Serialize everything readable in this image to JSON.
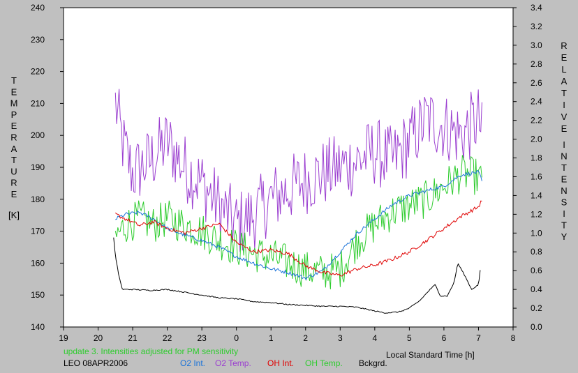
{
  "chart_data": {
    "type": "line",
    "xlabel": "Local Standard Time [h]",
    "xticks": [
      "19",
      "20",
      "21",
      "22",
      "23",
      "0",
      "1",
      "2",
      "3",
      "4",
      "5",
      "6",
      "7",
      "8"
    ],
    "xlim": [
      19,
      32
    ],
    "y_left": {
      "label_letters": [
        "T",
        "E",
        "M",
        "P",
        "E",
        "R",
        "A",
        "T",
        "U",
        "R",
        "E"
      ],
      "unit": "[K]",
      "lim": [
        140,
        240
      ],
      "ticks": [
        "140",
        "150",
        "160",
        "170",
        "180",
        "190",
        "200",
        "210",
        "220",
        "230",
        "240"
      ]
    },
    "y_right": {
      "label_letters_1": [
        "R",
        "E",
        "L",
        "A",
        "T",
        "I",
        "V",
        "E"
      ],
      "label_letters_2": [
        "I",
        "N",
        "T",
        "E",
        "N",
        "S",
        "I",
        "T",
        "Y"
      ],
      "lim": [
        0.0,
        3.4
      ],
      "ticks": [
        "0.0",
        "0.2",
        "0.4",
        "0.6",
        "0.8",
        "1.0",
        "1.2",
        "1.4",
        "1.6",
        "1.8",
        "2.0",
        "2.2",
        "2.4",
        "2.6",
        "2.8",
        "3.0",
        "3.2",
        "3.4"
      ]
    },
    "note": "update 3. Intensities adjusted for PM sensitivity",
    "station": "LEO 08APR2006",
    "series": [
      {
        "name": "O2 Int.",
        "axis": "right",
        "color": "#1a73d9",
        "x": [
          20.5,
          20.8,
          21.2,
          21.6,
          22.0,
          22.5,
          23.0,
          23.5,
          24.0,
          24.5,
          25.0,
          25.5,
          26.0,
          26.5,
          27.0,
          27.5,
          28.0,
          28.5,
          29.0,
          29.5,
          30.0,
          30.5,
          31.0,
          31.1
        ],
        "y": [
          1.15,
          1.2,
          1.22,
          1.15,
          1.05,
          0.98,
          0.92,
          0.85,
          0.75,
          0.68,
          0.62,
          0.58,
          0.52,
          0.6,
          0.8,
          1.0,
          1.15,
          1.3,
          1.4,
          1.45,
          1.5,
          1.62,
          1.65,
          1.55
        ]
      },
      {
        "name": "O2 Temp.",
        "axis": "left",
        "color": "#9b3fd0",
        "x": [
          20.5,
          20.7,
          21.0,
          21.5,
          22.0,
          22.5,
          23.0,
          23.5,
          24.0,
          24.5,
          25.0,
          25.5,
          26.0,
          26.5,
          27.0,
          27.5,
          28.0,
          28.5,
          29.0,
          29.5,
          30.0,
          30.5,
          31.0,
          31.1
        ],
        "y": [
          210,
          198,
          188,
          192,
          198,
          190,
          185,
          178,
          172,
          175,
          180,
          183,
          186,
          188,
          190,
          192,
          195,
          192,
          198,
          205,
          203,
          200,
          205,
          200
        ]
      },
      {
        "name": "OH Int.",
        "axis": "right",
        "color": "#e00000",
        "x": [
          20.5,
          20.8,
          21.2,
          21.6,
          22.0,
          22.5,
          23.0,
          23.5,
          24.0,
          24.5,
          25.0,
          25.5,
          26.0,
          26.5,
          27.0,
          27.5,
          28.0,
          28.5,
          29.0,
          29.5,
          30.0,
          30.5,
          31.0,
          31.1
        ],
        "y": [
          1.2,
          1.15,
          1.08,
          1.12,
          1.05,
          1.0,
          1.05,
          1.1,
          0.9,
          0.8,
          0.82,
          0.78,
          0.65,
          0.58,
          0.55,
          0.62,
          0.66,
          0.72,
          0.8,
          0.92,
          1.05,
          1.18,
          1.28,
          1.35
        ]
      },
      {
        "name": "OH Temp.",
        "axis": "left",
        "color": "#2ecc2e",
        "x": [
          20.5,
          20.8,
          21.2,
          21.6,
          22.0,
          22.5,
          23.0,
          23.5,
          24.0,
          24.5,
          25.0,
          25.5,
          26.0,
          26.5,
          27.0,
          27.5,
          28.0,
          28.5,
          29.0,
          29.5,
          30.0,
          30.5,
          31.0,
          31.1
        ],
        "y": [
          168,
          172,
          174,
          172,
          174,
          172,
          170,
          167,
          165,
          163,
          162,
          160,
          158,
          157,
          158,
          167,
          172,
          176,
          178,
          180,
          184,
          188,
          187,
          185
        ]
      },
      {
        "name": "Bckgrd.",
        "axis": "right",
        "color": "#000000",
        "x": [
          20.45,
          20.5,
          20.6,
          20.7,
          21.0,
          21.5,
          22.0,
          22.5,
          23.0,
          23.5,
          24.0,
          24.5,
          25.0,
          25.5,
          26.0,
          26.5,
          27.0,
          27.5,
          28.0,
          28.3,
          28.7,
          29.0,
          29.3,
          29.6,
          29.75,
          29.9,
          30.1,
          30.3,
          30.4,
          30.6,
          30.8,
          31.0,
          31.05
        ],
        "y": [
          0.95,
          0.75,
          0.55,
          0.4,
          0.4,
          0.39,
          0.4,
          0.37,
          0.34,
          0.31,
          0.3,
          0.27,
          0.26,
          0.24,
          0.23,
          0.22,
          0.22,
          0.21,
          0.17,
          0.15,
          0.16,
          0.2,
          0.28,
          0.4,
          0.45,
          0.33,
          0.33,
          0.48,
          0.68,
          0.55,
          0.4,
          0.45,
          0.6
        ]
      }
    ]
  }
}
